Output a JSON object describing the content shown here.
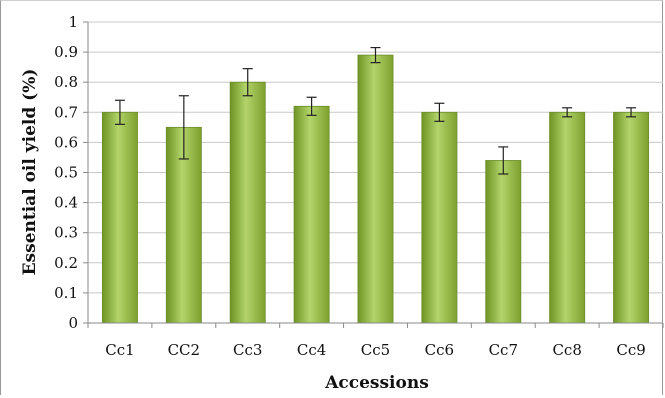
{
  "chart_data": {
    "type": "bar",
    "title": "",
    "xlabel": "Accessions",
    "ylabel": "Essential oil yield (%)",
    "ylim": [
      0,
      1
    ],
    "yticks": [
      "0",
      "0.1",
      "0.2",
      "0.3",
      "0.4",
      "0.5",
      "0.6",
      "0.7",
      "0.8",
      "0.9",
      "1"
    ],
    "categories": [
      "Cc1",
      "CC2",
      "Cc3",
      "Cc4",
      "Cc5",
      "Cc6",
      "Cc7",
      "Cc8",
      "Cc9"
    ],
    "values": [
      0.7,
      0.65,
      0.8,
      0.72,
      0.89,
      0.7,
      0.54,
      0.7,
      0.7
    ],
    "errors": [
      0.04,
      0.105,
      0.045,
      0.03,
      0.025,
      0.03,
      0.045,
      0.015,
      0.015
    ],
    "grid": true,
    "bar_color": "#8db33a"
  }
}
